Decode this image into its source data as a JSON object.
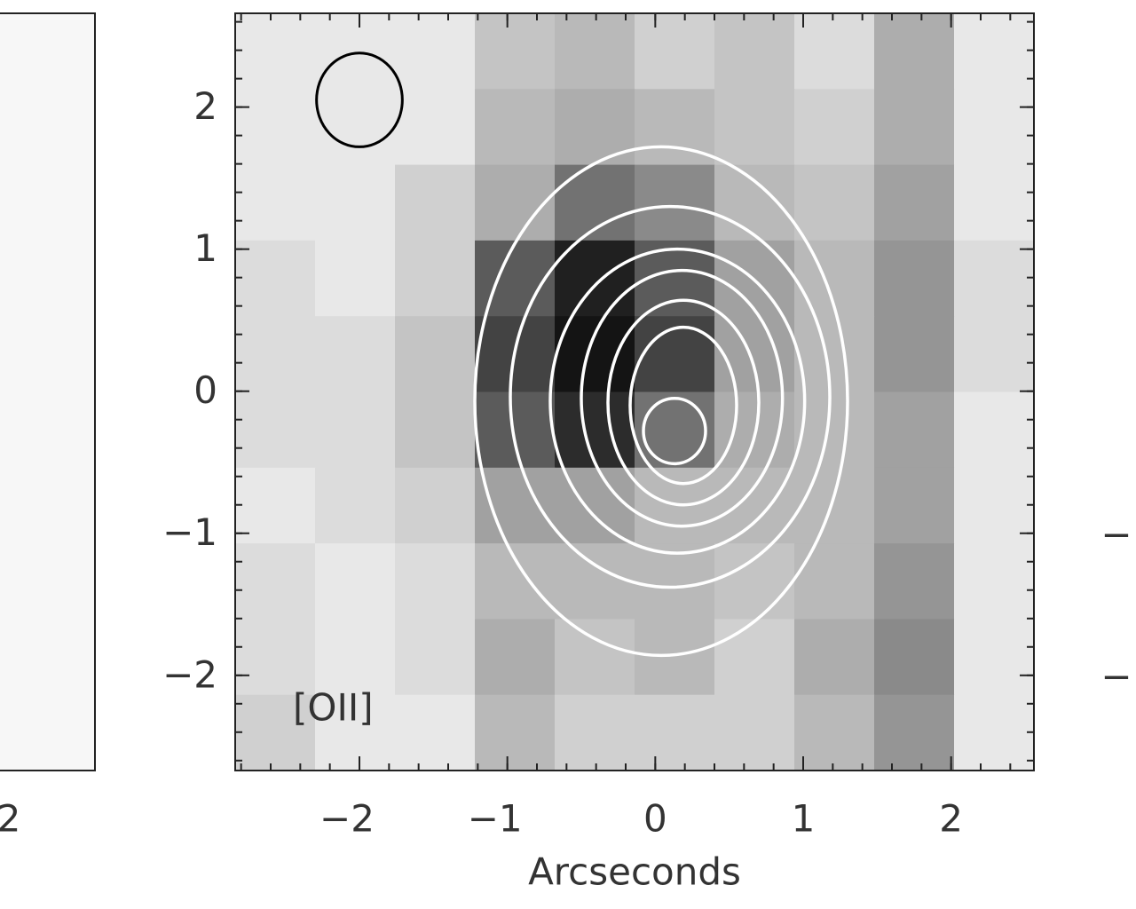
{
  "chart_data": {
    "type": "image",
    "xlabel": "Arcseconds",
    "annotation": "[OII]",
    "xlim": [
      -2.84,
      2.56
    ],
    "ylim": [
      -2.67,
      2.66
    ],
    "xticks": [
      {
        "value": -2,
        "label": "−2"
      },
      {
        "value": -1,
        "label": "−1"
      },
      0,
      1,
      2
    ],
    "yticks": [
      {
        "value": -2,
        "label": "−2"
      },
      {
        "value": -1,
        "label": "−1"
      },
      0,
      1,
      2
    ],
    "minor_tick_step": 0.2,
    "image": [
      [
        0.1,
        0.1,
        0.1,
        0.25,
        0.3,
        0.2,
        0.25,
        0.15,
        0.35,
        0.1
      ],
      [
        0.1,
        0.1,
        0.1,
        0.3,
        0.35,
        0.3,
        0.25,
        0.2,
        0.35,
        0.1
      ],
      [
        0.1,
        0.1,
        0.2,
        0.35,
        0.6,
        0.5,
        0.3,
        0.25,
        0.4,
        0.1
      ],
      [
        0.15,
        0.1,
        0.2,
        0.7,
        0.95,
        0.7,
        0.4,
        0.3,
        0.45,
        0.15
      ],
      [
        0.15,
        0.15,
        0.25,
        0.8,
        1,
        0.8,
        0.4,
        0.3,
        0.45,
        0.15
      ],
      [
        0.15,
        0.15,
        0.25,
        0.7,
        0.9,
        0.6,
        0.35,
        0.3,
        0.4,
        0.1
      ],
      [
        0.1,
        0.15,
        0.2,
        0.4,
        0.4,
        0.3,
        0.3,
        0.3,
        0.4,
        0.1
      ],
      [
        0.15,
        0.1,
        0.15,
        0.3,
        0.3,
        0.3,
        0.25,
        0.3,
        0.45,
        0.1
      ],
      [
        0.15,
        0.1,
        0.15,
        0.35,
        0.25,
        0.3,
        0.2,
        0.35,
        0.5,
        0.1
      ],
      [
        0.2,
        0.1,
        0.1,
        0.3,
        0.2,
        0.2,
        0.2,
        0.3,
        0.45,
        0.1
      ]
    ],
    "contours": [
      {
        "x": 0.04,
        "y": -0.07,
        "rx": 1.26,
        "ry": 1.79
      },
      {
        "x": 0.1,
        "y": -0.04,
        "rx": 1.08,
        "ry": 1.34
      },
      {
        "x": 0.15,
        "y": -0.07,
        "rx": 0.86,
        "ry": 1.07
      },
      {
        "x": 0.18,
        "y": -0.05,
        "rx": 0.68,
        "ry": 0.9
      },
      {
        "x": 0.19,
        "y": -0.08,
        "rx": 0.51,
        "ry": 0.72
      },
      {
        "x": 0.19,
        "y": -0.1,
        "rx": 0.36,
        "ry": 0.55
      },
      {
        "x": 0.13,
        "y": -0.28,
        "rx": 0.21,
        "ry": 0.23
      }
    ],
    "contour_color": "#ffffff",
    "beam": {
      "x": -2,
      "y": 2.05,
      "rx": 0.29,
      "ry": 0.33,
      "color": "#000000"
    }
  },
  "left_panel_xtick": "2",
  "right_panel_fragments": [
    "−",
    "−"
  ]
}
